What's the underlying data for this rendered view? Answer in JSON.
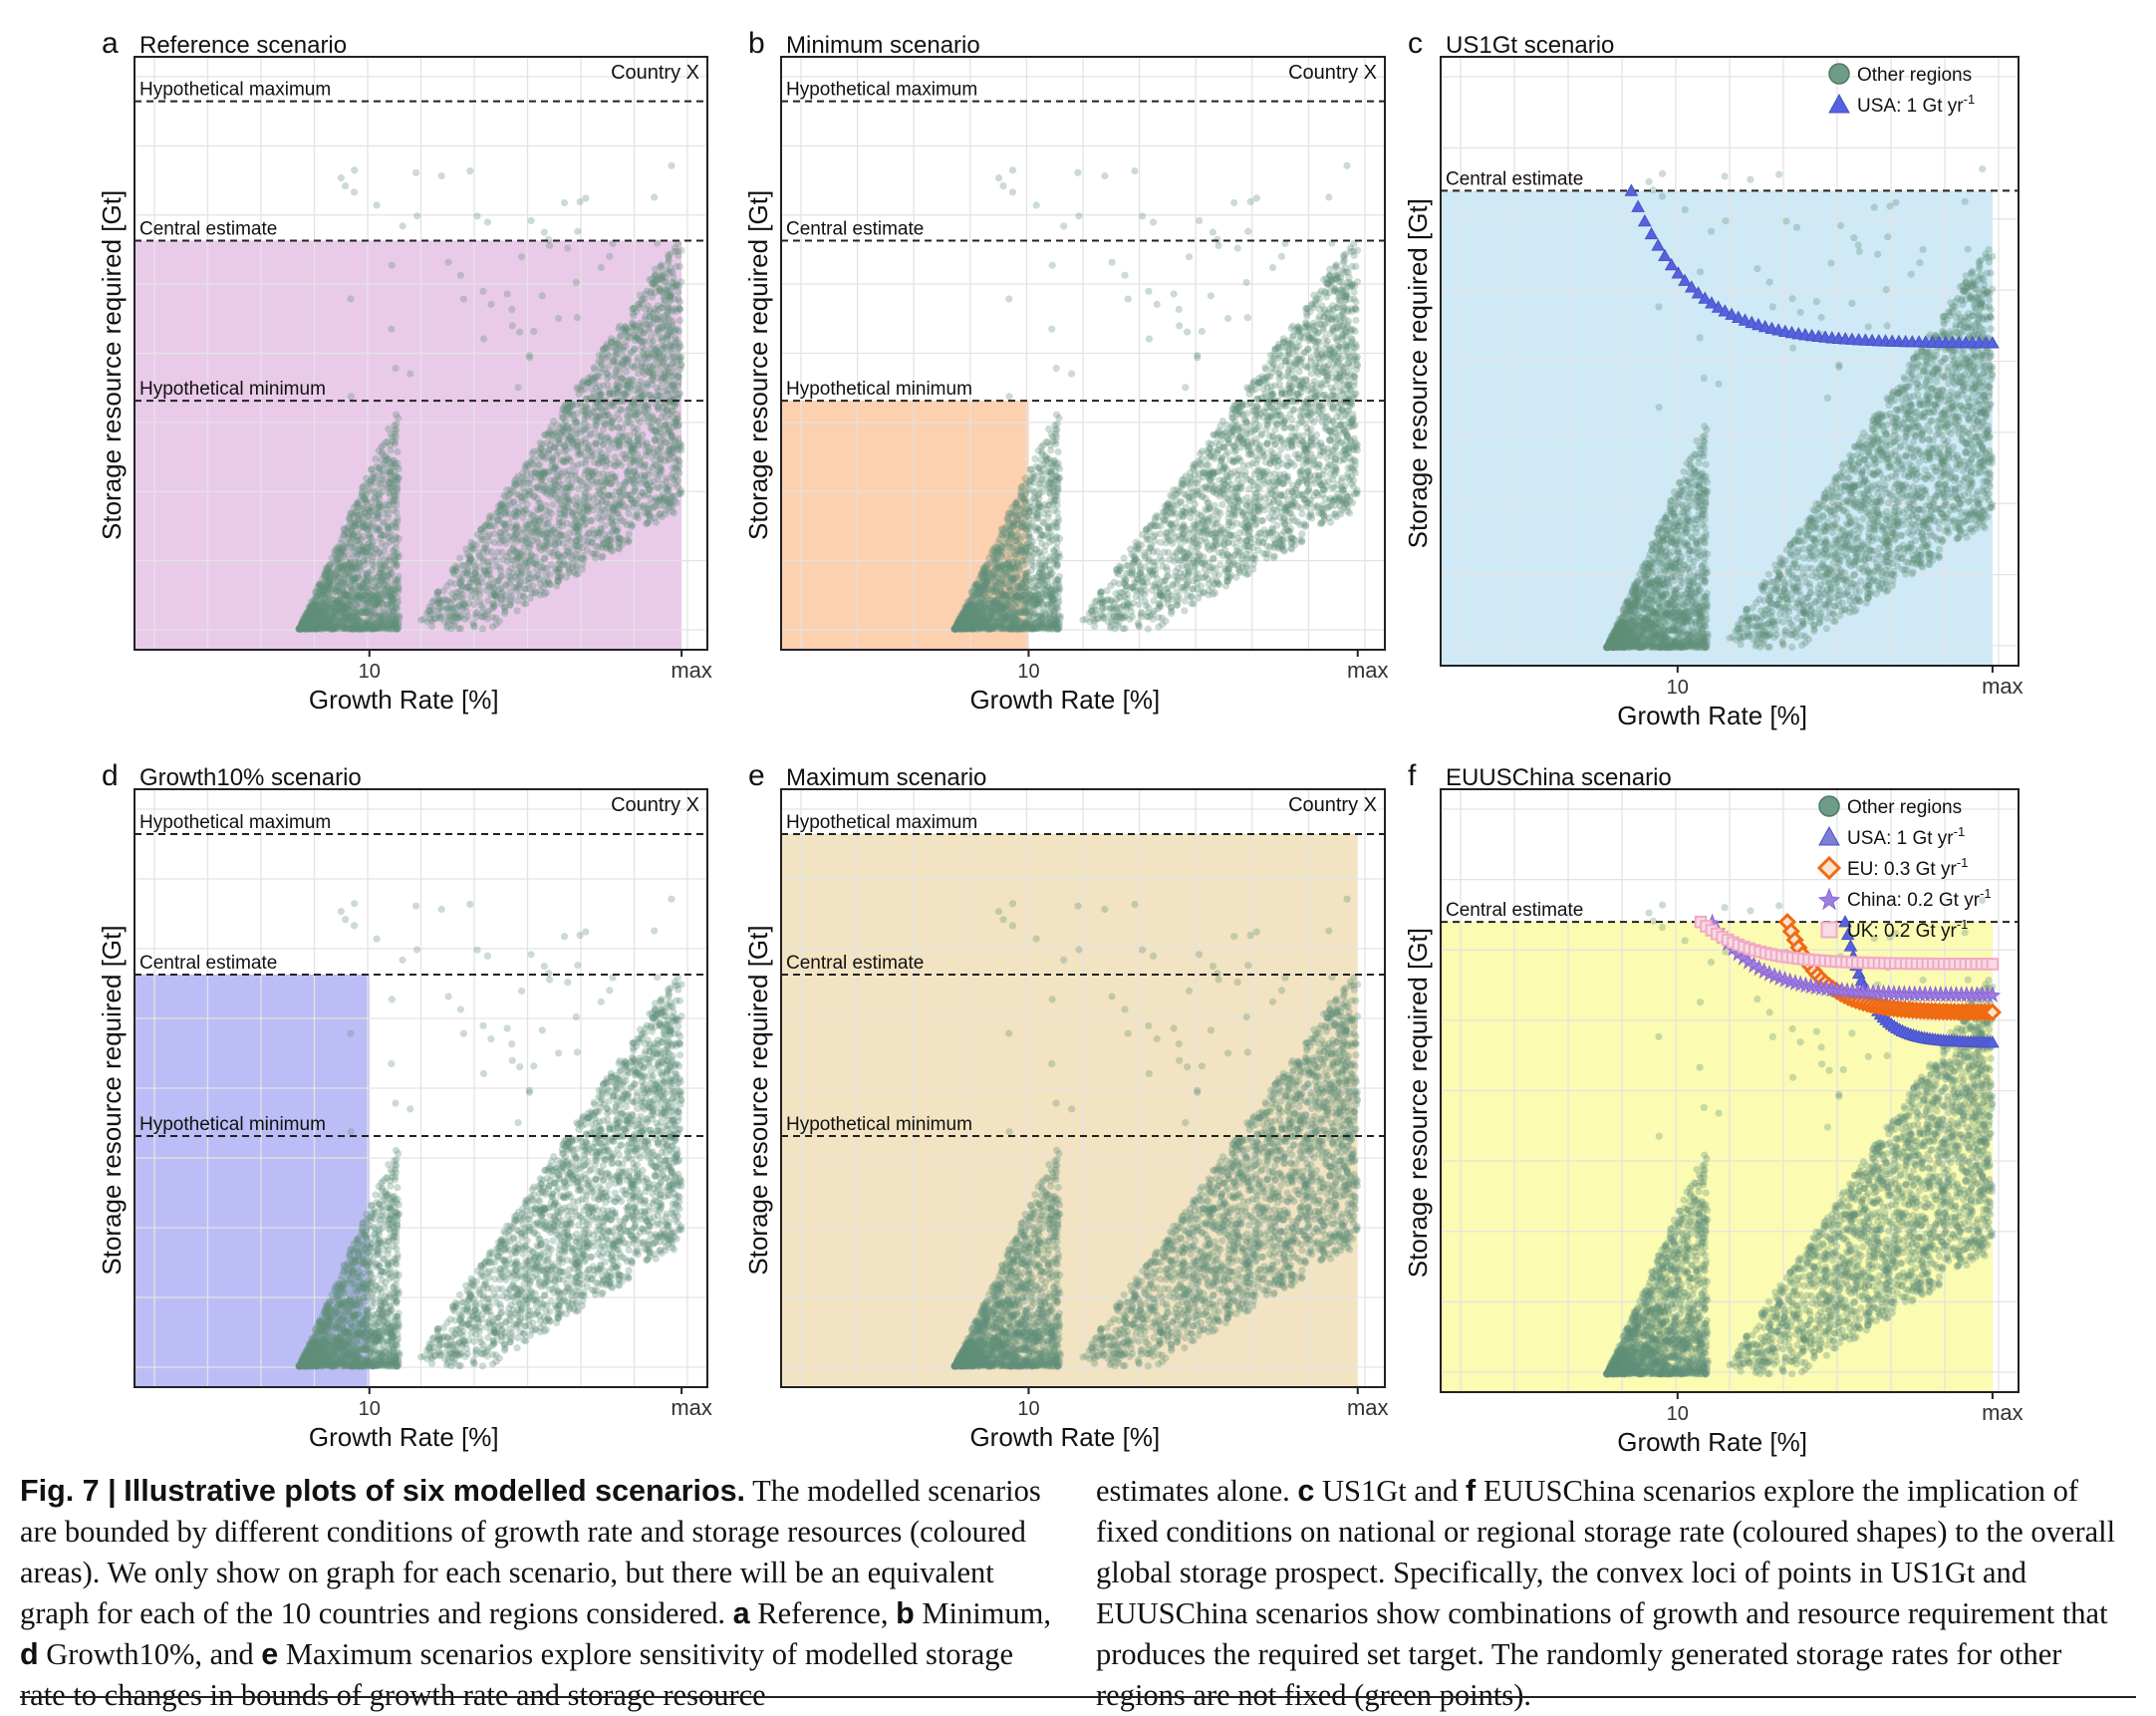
{
  "figure": {
    "panels": [
      {
        "letter": "a",
        "title": "Reference scenario",
        "corner_label": "Country X",
        "shade": {
          "color": "#e9cbe9",
          "x_from": 0,
          "x_to": 1,
          "y_to": "Central estimate"
        },
        "hlines": [
          "Hypothetical maximum",
          "Central estimate",
          "Hypothetical minimum"
        ],
        "x_ticks": [
          "10",
          "max"
        ],
        "xlabel": "Growth Rate [%]",
        "ylabel": "Storage resource required [Gt]",
        "legend": [],
        "loci": []
      },
      {
        "letter": "b",
        "title": "Minimum scenario",
        "corner_label": "Country X",
        "shade": {
          "color": "#fdd0b0",
          "x_from": 0,
          "x_to": "10",
          "y_to": "Hypothetical minimum"
        },
        "hlines": [
          "Hypothetical maximum",
          "Central estimate",
          "Hypothetical minimum"
        ],
        "x_ticks": [
          "10",
          "max"
        ],
        "xlabel": "Growth Rate [%]",
        "ylabel": "Storage resource required [Gt]",
        "legend": [],
        "loci": []
      },
      {
        "letter": "c",
        "title": "US1Gt scenario",
        "corner_label": "",
        "shade": {
          "color": "#cfe9f6",
          "x_from": 0,
          "x_to": 1,
          "y_to": "Central estimate"
        },
        "hlines": [
          "Central estimate"
        ],
        "x_ticks": [
          "10",
          "max"
        ],
        "xlabel": "Growth Rate [%]",
        "ylabel": "Storage resource required [Gt]",
        "legend": [
          {
            "label": "Other regions",
            "sup": "",
            "shape": "circle",
            "color": "#6f9c89"
          },
          {
            "label": "USA: 1 Gt yr",
            "sup": "-1",
            "shape": "triangle",
            "color": "#5562e0"
          }
        ],
        "loci": [
          "USA: 1 Gt yr-1"
        ]
      },
      {
        "letter": "d",
        "title": "Growth10% scenario",
        "corner_label": "Country X",
        "shade": {
          "color": "#bcbdf6",
          "x_from": 0,
          "x_to": "10",
          "y_to": "Central estimate"
        },
        "hlines": [
          "Hypothetical maximum",
          "Central estimate",
          "Hypothetical minimum"
        ],
        "x_ticks": [
          "10",
          "max"
        ],
        "xlabel": "Growth Rate [%]",
        "ylabel": "Storage resource required [Gt]",
        "legend": [],
        "loci": []
      },
      {
        "letter": "e",
        "title": "Maximum scenario",
        "corner_label": "Country X",
        "shade": {
          "color": "#f2e3c2",
          "x_from": 0,
          "x_to": 1,
          "y_to": "Hypothetical maximum"
        },
        "hlines": [
          "Hypothetical maximum",
          "Central estimate",
          "Hypothetical minimum"
        ],
        "x_ticks": [
          "10",
          "max"
        ],
        "xlabel": "Growth Rate [%]",
        "ylabel": "Storage resource required [Gt]",
        "legend": [],
        "loci": []
      },
      {
        "letter": "f",
        "title": "EUUSChina scenario",
        "corner_label": "",
        "shade": {
          "color": "#fbfbb2",
          "x_from": 0,
          "x_to": 1,
          "y_to": "Central estimate"
        },
        "hlines": [
          "Central estimate"
        ],
        "x_ticks": [
          "10",
          "max"
        ],
        "xlabel": "Growth Rate [%]",
        "ylabel": "Storage resource required [Gt]",
        "legend": [
          {
            "label": "Other regions",
            "sup": "",
            "shape": "circle",
            "color": "#6f9c89"
          },
          {
            "label": "USA: 1 Gt yr",
            "sup": "-1",
            "shape": "triangle",
            "color": "#7b7fd6"
          },
          {
            "label": "EU: 0.3 Gt yr",
            "sup": "-1",
            "shape": "diamond",
            "color": "#f06a12"
          },
          {
            "label": "China: 0.2 Gt yr",
            "sup": "-1",
            "shape": "star",
            "color": "#a07ee0"
          },
          {
            "label": "UK: 0.2 Gt yr",
            "sup": "-1",
            "shape": "square",
            "color": "#f2a9c2"
          }
        ],
        "loci": [
          "USA: 1 Gt yr-1",
          "EU: 0.3 Gt yr-1",
          "China: 0.2 Gt yr-1",
          "UK: 0.2 Gt yr-1"
        ]
      }
    ]
  },
  "caption": {
    "label": "Fig. 7 |",
    "title": "Illustrative plots of six modelled scenarios.",
    "text_1": "The modelled scenarios are bounded by different conditions of growth rate and storage resources (coloured areas). We only show on graph for each scenario, but there will be an equivalent graph for each of the 10 countries and regions considered.",
    "ref_a": "a",
    "ref_a_text": "Reference,",
    "ref_b": "b",
    "ref_b_text": "Minimum,",
    "ref_d": "d",
    "ref_d_text": "Growth10%, and",
    "ref_e": "e",
    "ref_e_text": "Maximum scenarios explore sensitivity of modelled storage rate to changes in bounds of growth rate and storage resource estimates alone.",
    "ref_c": "c",
    "ref_c_text": "US1Gt and",
    "ref_f": "f",
    "ref_f_text": "EUUSChina scenarios explore the implication of fixed conditions on national or regional storage rate (coloured shapes) to the overall global storage prospect. Specifically, the convex loci of points in US1Gt and EUUSChina scenarios show combinations of growth and resource requirement that produces the required set target. The randomly generated storage rates for other regions are not fixed (green points)."
  }
}
